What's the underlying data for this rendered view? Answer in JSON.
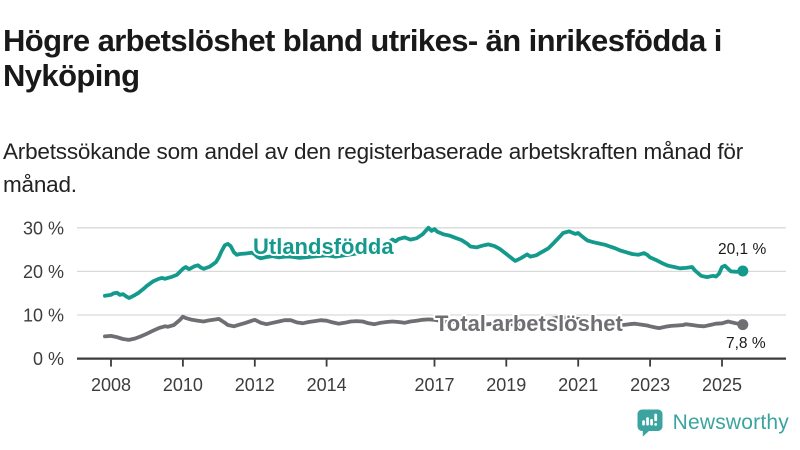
{
  "header": {
    "title": "Högre arbetslöshet bland utrikes- än inrikesfödda i Nyköping",
    "subtitle": "Arbetssökande som andel av den registerbaserade arbetskraften månad för månad."
  },
  "chart_data": {
    "type": "line",
    "title": "Högre arbetslöshet bland utrikes- än inrikesfödda i Nyköping",
    "subtitle": "Arbetssökande som andel av den registerbaserade arbetskraften månad för månad.",
    "unit": "%",
    "grid": "horizontal",
    "legend_position": "inline-on-line",
    "x_axis": {
      "range": [
        2007.8,
        2026.2
      ],
      "ticks": [
        {
          "value": 2008,
          "label": "2008"
        },
        {
          "value": 2010,
          "label": "2010"
        },
        {
          "value": 2012,
          "label": "2012"
        },
        {
          "value": 2014,
          "label": "2014"
        },
        {
          "value": 2017,
          "label": "2017"
        },
        {
          "value": 2019,
          "label": "2019"
        },
        {
          "value": 2021,
          "label": "2021"
        },
        {
          "value": 2023,
          "label": "2023"
        },
        {
          "value": 2025,
          "label": "2025"
        }
      ]
    },
    "y_axis": {
      "range": [
        0,
        32
      ],
      "ticks": [
        {
          "value": 30,
          "label": "30 %"
        },
        {
          "value": 20,
          "label": "20 %"
        },
        {
          "value": 10,
          "label": "10 %"
        },
        {
          "value": 0,
          "label": "0 %"
        }
      ]
    },
    "colors": {
      "grid": "#d9d9d9",
      "axis": "#3c3c3c",
      "tick_text": "#3d3d3d",
      "value_label": "#1a1a1a"
    },
    "series": [
      {
        "name": "Utlandsfödda",
        "color": "#149a8c",
        "end_label": "20,1 %",
        "end_value": 20.1,
        "points": [
          [
            2007.83,
            14.4
          ],
          [
            2008.0,
            14.6
          ],
          [
            2008.08,
            15.0
          ],
          [
            2008.17,
            15.1
          ],
          [
            2008.25,
            14.6
          ],
          [
            2008.33,
            14.8
          ],
          [
            2008.42,
            14.3
          ],
          [
            2008.5,
            13.9
          ],
          [
            2008.58,
            14.2
          ],
          [
            2008.67,
            14.6
          ],
          [
            2008.75,
            15.0
          ],
          [
            2008.83,
            15.5
          ],
          [
            2008.92,
            16.1
          ],
          [
            2009.0,
            16.7
          ],
          [
            2009.17,
            17.7
          ],
          [
            2009.33,
            18.3
          ],
          [
            2009.42,
            18.5
          ],
          [
            2009.5,
            18.3
          ],
          [
            2009.67,
            18.7
          ],
          [
            2009.83,
            19.2
          ],
          [
            2009.92,
            19.9
          ],
          [
            2010.0,
            20.6
          ],
          [
            2010.08,
            21.0
          ],
          [
            2010.17,
            20.5
          ],
          [
            2010.33,
            21.2
          ],
          [
            2010.42,
            21.4
          ],
          [
            2010.5,
            20.9
          ],
          [
            2010.58,
            20.6
          ],
          [
            2010.75,
            21.1
          ],
          [
            2010.92,
            22.1
          ],
          [
            2011.0,
            23.2
          ],
          [
            2011.08,
            24.7
          ],
          [
            2011.17,
            26.0
          ],
          [
            2011.25,
            26.3
          ],
          [
            2011.33,
            25.8
          ],
          [
            2011.42,
            24.4
          ],
          [
            2011.5,
            23.8
          ],
          [
            2011.58,
            24.0
          ],
          [
            2011.75,
            24.1
          ],
          [
            2011.92,
            24.3
          ],
          [
            2012.0,
            23.9
          ],
          [
            2012.08,
            23.3
          ],
          [
            2012.17,
            23.0
          ],
          [
            2012.33,
            23.3
          ],
          [
            2012.5,
            23.5
          ],
          [
            2012.67,
            23.2
          ],
          [
            2012.83,
            23.4
          ],
          [
            2013.0,
            23.4
          ],
          [
            2013.25,
            23.1
          ],
          [
            2013.5,
            23.3
          ],
          [
            2013.75,
            23.5
          ],
          [
            2014.0,
            23.7
          ],
          [
            2014.25,
            23.4
          ],
          [
            2014.5,
            23.7
          ],
          [
            2014.75,
            24.0
          ],
          [
            2015.0,
            24.4
          ],
          [
            2015.25,
            24.7
          ],
          [
            2015.5,
            25.4
          ],
          [
            2015.67,
            26.2
          ],
          [
            2015.83,
            27.3
          ],
          [
            2015.92,
            26.9
          ],
          [
            2016.0,
            27.4
          ],
          [
            2016.17,
            27.8
          ],
          [
            2016.33,
            27.3
          ],
          [
            2016.5,
            27.6
          ],
          [
            2016.67,
            28.5
          ],
          [
            2016.83,
            30.0
          ],
          [
            2016.92,
            29.3
          ],
          [
            2017.0,
            29.7
          ],
          [
            2017.08,
            29.1
          ],
          [
            2017.25,
            28.5
          ],
          [
            2017.42,
            28.2
          ],
          [
            2017.58,
            27.7
          ],
          [
            2017.75,
            27.2
          ],
          [
            2017.92,
            26.3
          ],
          [
            2018.0,
            25.7
          ],
          [
            2018.17,
            25.5
          ],
          [
            2018.33,
            25.9
          ],
          [
            2018.5,
            26.2
          ],
          [
            2018.67,
            25.8
          ],
          [
            2018.83,
            25.1
          ],
          [
            2019.0,
            24.0
          ],
          [
            2019.17,
            22.9
          ],
          [
            2019.25,
            22.4
          ],
          [
            2019.42,
            23.1
          ],
          [
            2019.58,
            23.9
          ],
          [
            2019.67,
            23.4
          ],
          [
            2019.83,
            23.7
          ],
          [
            2020.0,
            24.5
          ],
          [
            2020.17,
            25.3
          ],
          [
            2020.33,
            26.6
          ],
          [
            2020.5,
            28.1
          ],
          [
            2020.58,
            28.8
          ],
          [
            2020.75,
            29.2
          ],
          [
            2020.83,
            28.9
          ],
          [
            2020.92,
            28.6
          ],
          [
            2021.0,
            28.8
          ],
          [
            2021.08,
            28.2
          ],
          [
            2021.25,
            27.1
          ],
          [
            2021.42,
            26.7
          ],
          [
            2021.58,
            26.4
          ],
          [
            2021.75,
            26.1
          ],
          [
            2021.92,
            25.6
          ],
          [
            2022.0,
            25.4
          ],
          [
            2022.17,
            24.8
          ],
          [
            2022.33,
            24.4
          ],
          [
            2022.5,
            24.0
          ],
          [
            2022.67,
            23.8
          ],
          [
            2022.83,
            24.2
          ],
          [
            2022.92,
            23.8
          ],
          [
            2023.0,
            23.2
          ],
          [
            2023.17,
            22.6
          ],
          [
            2023.33,
            21.9
          ],
          [
            2023.5,
            21.3
          ],
          [
            2023.67,
            21.0
          ],
          [
            2023.83,
            20.7
          ],
          [
            2024.0,
            20.8
          ],
          [
            2024.17,
            21.0
          ],
          [
            2024.25,
            20.2
          ],
          [
            2024.42,
            19.0
          ],
          [
            2024.58,
            18.7
          ],
          [
            2024.75,
            19.0
          ],
          [
            2024.83,
            18.8
          ],
          [
            2024.92,
            19.5
          ],
          [
            2025.0,
            21.0
          ],
          [
            2025.08,
            21.3
          ],
          [
            2025.17,
            20.6
          ],
          [
            2025.25,
            20.0
          ],
          [
            2025.42,
            19.9
          ],
          [
            2025.58,
            20.1
          ]
        ]
      },
      {
        "name": "Total arbetslöshet",
        "color": "#6f6e73",
        "end_label": "7,8 %",
        "end_value": 7.8,
        "points": [
          [
            2007.83,
            5.1
          ],
          [
            2008.0,
            5.2
          ],
          [
            2008.17,
            4.9
          ],
          [
            2008.33,
            4.5
          ],
          [
            2008.5,
            4.3
          ],
          [
            2008.67,
            4.6
          ],
          [
            2008.83,
            5.1
          ],
          [
            2009.0,
            5.7
          ],
          [
            2009.17,
            6.4
          ],
          [
            2009.33,
            7.0
          ],
          [
            2009.5,
            7.4
          ],
          [
            2009.58,
            7.3
          ],
          [
            2009.75,
            7.7
          ],
          [
            2009.92,
            8.9
          ],
          [
            2010.0,
            9.6
          ],
          [
            2010.08,
            9.3
          ],
          [
            2010.25,
            8.9
          ],
          [
            2010.42,
            8.7
          ],
          [
            2010.58,
            8.5
          ],
          [
            2010.75,
            8.8
          ],
          [
            2010.92,
            9.0
          ],
          [
            2011.0,
            9.1
          ],
          [
            2011.17,
            8.2
          ],
          [
            2011.25,
            7.7
          ],
          [
            2011.42,
            7.4
          ],
          [
            2011.58,
            7.8
          ],
          [
            2011.75,
            8.2
          ],
          [
            2011.92,
            8.7
          ],
          [
            2012.0,
            8.9
          ],
          [
            2012.17,
            8.2
          ],
          [
            2012.33,
            7.9
          ],
          [
            2012.5,
            8.2
          ],
          [
            2012.67,
            8.5
          ],
          [
            2012.83,
            8.8
          ],
          [
            2013.0,
            8.8
          ],
          [
            2013.17,
            8.3
          ],
          [
            2013.33,
            8.1
          ],
          [
            2013.5,
            8.4
          ],
          [
            2013.67,
            8.6
          ],
          [
            2013.83,
            8.8
          ],
          [
            2014.0,
            8.7
          ],
          [
            2014.17,
            8.3
          ],
          [
            2014.33,
            8.0
          ],
          [
            2014.5,
            8.2
          ],
          [
            2014.67,
            8.5
          ],
          [
            2014.83,
            8.6
          ],
          [
            2015.0,
            8.5
          ],
          [
            2015.17,
            8.1
          ],
          [
            2015.33,
            7.9
          ],
          [
            2015.5,
            8.2
          ],
          [
            2015.67,
            8.4
          ],
          [
            2015.83,
            8.5
          ],
          [
            2016.0,
            8.4
          ],
          [
            2016.17,
            8.2
          ],
          [
            2016.33,
            8.5
          ],
          [
            2016.5,
            8.7
          ],
          [
            2016.67,
            8.9
          ],
          [
            2016.83,
            9.0
          ],
          [
            2017.0,
            8.9
          ],
          [
            2017.25,
            8.5
          ],
          [
            2017.5,
            8.4
          ],
          [
            2017.75,
            8.2
          ],
          [
            2018.0,
            8.0
          ],
          [
            2018.25,
            7.7
          ],
          [
            2018.5,
            7.9
          ],
          [
            2018.75,
            8.1
          ],
          [
            2019.0,
            8.0
          ],
          [
            2019.25,
            7.8
          ],
          [
            2019.5,
            8.1
          ],
          [
            2019.75,
            8.3
          ],
          [
            2020.0,
            8.5
          ],
          [
            2020.25,
            9.1
          ],
          [
            2020.5,
            9.5
          ],
          [
            2020.75,
            9.3
          ],
          [
            2021.0,
            9.1
          ],
          [
            2021.25,
            8.7
          ],
          [
            2021.5,
            8.4
          ],
          [
            2021.75,
            8.1
          ],
          [
            2022.0,
            7.9
          ],
          [
            2022.25,
            7.7
          ],
          [
            2022.42,
            7.9
          ],
          [
            2022.58,
            8.0
          ],
          [
            2022.75,
            7.8
          ],
          [
            2022.92,
            7.6
          ],
          [
            2023.0,
            7.4
          ],
          [
            2023.17,
            7.1
          ],
          [
            2023.25,
            7.0
          ],
          [
            2023.42,
            7.3
          ],
          [
            2023.58,
            7.5
          ],
          [
            2023.75,
            7.6
          ],
          [
            2023.92,
            7.7
          ],
          [
            2024.0,
            7.9
          ],
          [
            2024.17,
            7.7
          ],
          [
            2024.33,
            7.5
          ],
          [
            2024.5,
            7.4
          ],
          [
            2024.67,
            7.7
          ],
          [
            2024.83,
            8.0
          ],
          [
            2025.0,
            8.1
          ],
          [
            2025.17,
            8.5
          ],
          [
            2025.33,
            8.2
          ],
          [
            2025.5,
            7.9
          ],
          [
            2025.58,
            7.8
          ]
        ]
      }
    ]
  },
  "footer": {
    "brand": "Newsworthy",
    "brand_color": "#3ba4a0",
    "logo_icon": "speech-bubble-bar-chart-exclamation"
  }
}
